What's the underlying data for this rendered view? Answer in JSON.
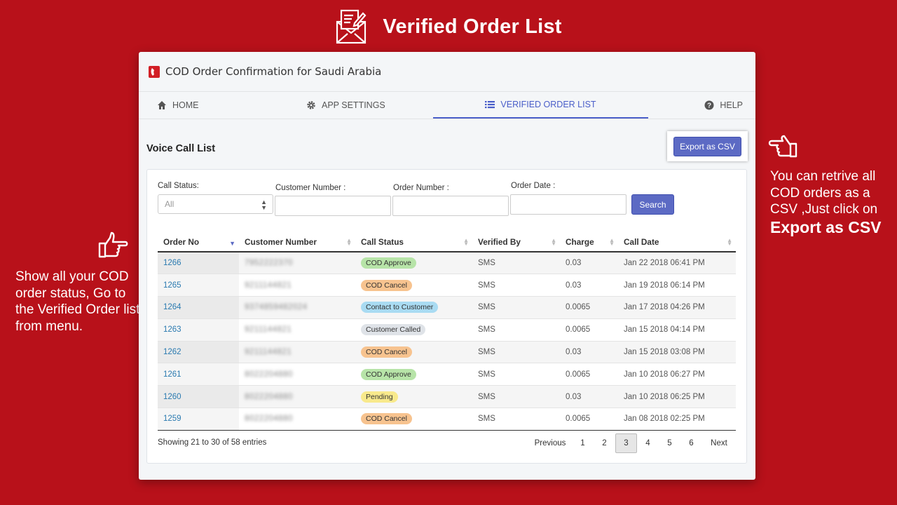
{
  "banner": {
    "title": "Verified Order List"
  },
  "left_note": {
    "text": "Show all your COD order status, Go to the Verified Order list from menu."
  },
  "right_note": {
    "text": "You can retrive all COD orders as a CSV ,Just click on",
    "strong": "Export as CSV"
  },
  "app": {
    "title": "COD Order Confirmation for Saudi Arabia"
  },
  "nav": {
    "home": "HOME",
    "settings": "APP SETTINGS",
    "verified": "VERIFIED ORDER LIST",
    "help": "HELP"
  },
  "section": {
    "title": "Voice Call List",
    "export_label": "Export as CSV"
  },
  "filters": {
    "call_status_label": "Call Status:",
    "call_status_value": "All",
    "customer_number_label": "Customer Number :",
    "order_number_label": "Order Number :",
    "order_date_label": "Order Date :",
    "search_label": "Search"
  },
  "table": {
    "headers": [
      "Order No",
      "Customer Number",
      "Call Status",
      "Verified By",
      "Charge",
      "Call Date"
    ],
    "rows": [
      {
        "order": "1266",
        "customer": "7952222370",
        "status": "COD Approve",
        "color": "green",
        "verified": "SMS",
        "charge": "0.03",
        "date": "Jan 22 2018 06:41 PM"
      },
      {
        "order": "1265",
        "customer": "9211144821",
        "status": "COD Cancel",
        "color": "orange",
        "verified": "SMS",
        "charge": "0.03",
        "date": "Jan 19 2018 06:14 PM"
      },
      {
        "order": "1264",
        "customer": "9374859482024",
        "status": "Contact to Customer",
        "color": "blue",
        "verified": "SMS",
        "charge": "0.0065",
        "date": "Jan 17 2018 04:26 PM"
      },
      {
        "order": "1263",
        "customer": "9211144821",
        "status": "Customer Called",
        "color": "grey",
        "verified": "SMS",
        "charge": "0.0065",
        "date": "Jan 15 2018 04:14 PM"
      },
      {
        "order": "1262",
        "customer": "9211144821",
        "status": "COD Cancel",
        "color": "orange",
        "verified": "SMS",
        "charge": "0.03",
        "date": "Jan 15 2018 03:08 PM"
      },
      {
        "order": "1261",
        "customer": "8022204880",
        "status": "COD Approve",
        "color": "green",
        "verified": "SMS",
        "charge": "0.0065",
        "date": "Jan 10 2018 06:27 PM"
      },
      {
        "order": "1260",
        "customer": "8022204880",
        "status": "Pending",
        "color": "yellow",
        "verified": "SMS",
        "charge": "0.03",
        "date": "Jan 10 2018 06:25 PM"
      },
      {
        "order": "1259",
        "customer": "8022204880",
        "status": "COD Cancel",
        "color": "orange",
        "verified": "SMS",
        "charge": "0.0065",
        "date": "Jan 08 2018 02:25 PM"
      }
    ],
    "info": "Showing 21 to 30 of 58 entries"
  },
  "pager": {
    "previous": "Previous",
    "pages": [
      "1",
      "2",
      "3",
      "4",
      "5",
      "6"
    ],
    "current": "3",
    "next": "Next"
  }
}
